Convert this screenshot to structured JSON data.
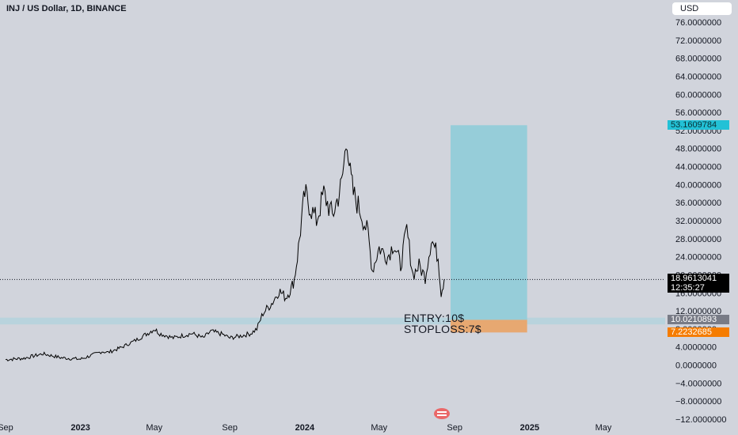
{
  "header": {
    "symbol": "INJ / US Dollar, 1D, BINANCE",
    "currency": "USD"
  },
  "price_tags": {
    "target": "53.1609784",
    "last_price": "18.9613041",
    "countdown": "12:35:27",
    "entry": "10.0210893",
    "stoploss": "7.2232685"
  },
  "annotations": {
    "entry": "ENTRY:10$",
    "stoploss": "STOPLOSS:7$"
  },
  "colors": {
    "background": "#d1d4dc",
    "price_line": "#000000",
    "profit_zone": "#96cdd9",
    "loss_zone": "#e7a871",
    "support_band": "#b8d3dd",
    "target_tag": "#22c1d6",
    "stop_tag": "#f57c00"
  },
  "chart_data": {
    "type": "line",
    "y_ticks": [
      "76.0000000",
      "72.0000000",
      "68.0000000",
      "64.0000000",
      "60.0000000",
      "56.0000000",
      "52.0000000",
      "48.0000000",
      "44.0000000",
      "40.0000000",
      "36.0000000",
      "32.0000000",
      "28.0000000",
      "24.0000000",
      "20.0000000",
      "16.0000000",
      "12.0000000",
      "8.0000000",
      "4.0000000",
      "0.0000000",
      "−4.0000000",
      "−8.0000000",
      "−12.0000000"
    ],
    "y_tick_values": [
      76,
      72,
      68,
      64,
      60,
      56,
      52,
      48,
      44,
      40,
      36,
      32,
      28,
      24,
      20,
      16,
      12,
      8,
      4,
      0,
      -4,
      -8,
      -12
    ],
    "x_ticks": [
      "Sep",
      "2023",
      "May",
      "Sep",
      "2024",
      "May",
      "Sep",
      "2025",
      "May"
    ],
    "x_tick_dates": [
      "2022-09-01",
      "2023-01-01",
      "2023-05-01",
      "2023-09-01",
      "2024-01-01",
      "2024-05-01",
      "2024-09-01",
      "2025-01-01",
      "2025-05-01"
    ],
    "x_tick_emphasis": [
      false,
      true,
      false,
      false,
      true,
      false,
      false,
      true,
      false
    ],
    "series": [
      {
        "x": [
          "2022-09-01",
          "2022-10-01",
          "2022-11-01",
          "2022-12-01",
          "2023-01-01",
          "2023-01-20",
          "2023-02-05",
          "2023-02-15",
          "2023-03-01",
          "2023-03-10",
          "2023-04-01",
          "2023-04-20",
          "2023-05-01",
          "2023-05-10",
          "2023-06-01",
          "2023-06-15",
          "2023-07-01",
          "2023-07-20",
          "2023-08-01",
          "2023-08-20",
          "2023-09-01",
          "2023-09-20",
          "2023-10-05",
          "2023-10-15",
          "2023-10-25",
          "2023-11-10",
          "2023-11-20",
          "2023-12-01",
          "2023-12-10",
          "2023-12-15",
          "2023-12-20",
          "2023-12-25",
          "2024-01-01",
          "2024-01-10",
          "2024-01-20",
          "2024-02-01",
          "2024-02-15",
          "2024-03-01",
          "2024-03-10",
          "2024-03-15",
          "2024-03-20",
          "2024-04-01",
          "2024-04-13",
          "2024-04-20",
          "2024-05-01",
          "2024-05-15",
          "2024-05-25",
          "2024-06-05",
          "2024-06-15",
          "2024-06-25",
          "2024-07-05",
          "2024-07-15",
          "2024-07-25",
          "2024-08-05",
          "2024-08-10",
          "2024-08-15"
        ],
        "values": [
          1.2,
          1.5,
          2.5,
          1.6,
          1.3,
          2.2,
          3.0,
          2.8,
          3.5,
          4.0,
          5.5,
          7.0,
          8.0,
          7.0,
          6.0,
          6.5,
          7.0,
          6.0,
          7.5,
          6.8,
          6.0,
          6.5,
          7.0,
          8.0,
          11.5,
          14.0,
          16.5,
          15.0,
          17.0,
          19.0,
          24.0,
          30.0,
          38.0,
          35.0,
          32.0,
          38.0,
          33.0,
          40.0,
          51.0,
          42.0,
          38.0,
          34.0,
          29.0,
          21.0,
          26.0,
          24.0,
          27.0,
          22.0,
          30.0,
          20.0,
          22.0,
          19.5,
          28.0,
          24.0,
          16.0,
          19.0
        ]
      }
    ],
    "ylim": [
      -12,
      78
    ],
    "price_line_value": 18.9613041,
    "support_band": [
      9.0,
      10.5
    ],
    "position": {
      "entry": 10.0210893,
      "target": 53.1609784,
      "stoploss": 7.2232685,
      "start": "2024-08-15",
      "end": "2024-12-15"
    },
    "grid": false
  }
}
